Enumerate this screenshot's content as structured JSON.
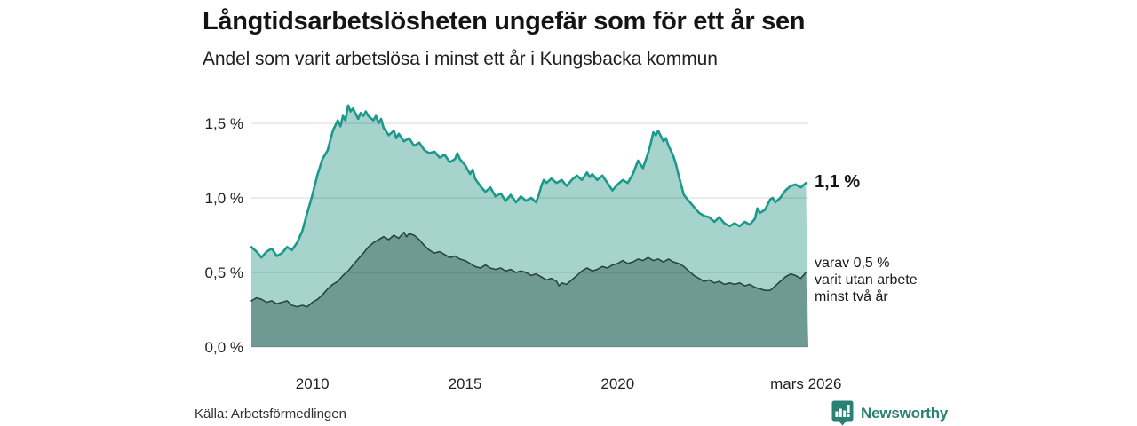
{
  "header": {
    "title": "Långtidsarbetslösheten ungefär som för ett år sen",
    "subtitle": "Andel som varit arbetslösa i minst ett år i Kungsbacka kommun"
  },
  "annotations": {
    "latest_value": "1,1 %",
    "secondary_lines": [
      "varav 0,5 %",
      "varit utan arbete",
      "minst två år"
    ]
  },
  "footer": {
    "source": "Källa: Arbetsförmedlingen",
    "brand": "Newsworthy"
  },
  "colors": {
    "series1_line": "#1b998b",
    "series1_fill": "#a6d4cd",
    "series2_line": "#28453f",
    "series2_fill": "#6f9a93",
    "gridline": "rgba(0,0,0,0.12)",
    "brand_teal": "#2a8073",
    "text": "#141414"
  },
  "chart_data": {
    "type": "area",
    "title": "Långtidsarbetslösheten ungefär som för ett år sen",
    "subtitle": "Andel som varit arbetslösa i minst ett år i Kungsbacka kommun",
    "grid": "horizontal",
    "legend": "none",
    "x_axis": {
      "min": 2008.0,
      "max": 2026.25,
      "ticks": [
        {
          "value": 2010,
          "label": "2010"
        },
        {
          "value": 2015,
          "label": "2015"
        },
        {
          "value": 2020,
          "label": "2020"
        },
        {
          "value": 2026.17,
          "label": "mars 2026"
        }
      ]
    },
    "y_axis": {
      "min": 0,
      "max": 1.65,
      "unit": "%",
      "ticks": [
        {
          "value": 1.5,
          "label": "1,5 %"
        },
        {
          "value": 1.0,
          "label": "1,0 %"
        },
        {
          "value": 0.5,
          "label": "0,5 %"
        },
        {
          "value": 0.0,
          "label": "0,0 %"
        }
      ]
    },
    "series": [
      {
        "name": "Andel arbetslösa minst ett år",
        "latest_label": "1,1 %",
        "fill": "#a6d4cd",
        "stroke": "#1b998b",
        "stroke_width": 2.6,
        "points": [
          [
            2008.0,
            0.67
          ],
          [
            2008.17,
            0.64
          ],
          [
            2008.33,
            0.6
          ],
          [
            2008.5,
            0.64
          ],
          [
            2008.67,
            0.66
          ],
          [
            2008.83,
            0.61
          ],
          [
            2009.0,
            0.63
          ],
          [
            2009.17,
            0.67
          ],
          [
            2009.33,
            0.65
          ],
          [
            2009.5,
            0.7
          ],
          [
            2009.67,
            0.78
          ],
          [
            2009.83,
            0.9
          ],
          [
            2010.0,
            1.02
          ],
          [
            2010.17,
            1.16
          ],
          [
            2010.33,
            1.26
          ],
          [
            2010.5,
            1.32
          ],
          [
            2010.67,
            1.45
          ],
          [
            2010.83,
            1.52
          ],
          [
            2010.92,
            1.48
          ],
          [
            2011.0,
            1.55
          ],
          [
            2011.08,
            1.52
          ],
          [
            2011.17,
            1.62
          ],
          [
            2011.25,
            1.58
          ],
          [
            2011.33,
            1.6
          ],
          [
            2011.5,
            1.53
          ],
          [
            2011.58,
            1.57
          ],
          [
            2011.67,
            1.55
          ],
          [
            2011.75,
            1.58
          ],
          [
            2011.83,
            1.55
          ],
          [
            2012.0,
            1.52
          ],
          [
            2012.08,
            1.55
          ],
          [
            2012.17,
            1.5
          ],
          [
            2012.25,
            1.53
          ],
          [
            2012.33,
            1.47
          ],
          [
            2012.5,
            1.42
          ],
          [
            2012.67,
            1.45
          ],
          [
            2012.75,
            1.4
          ],
          [
            2012.83,
            1.43
          ],
          [
            2013.0,
            1.38
          ],
          [
            2013.17,
            1.4
          ],
          [
            2013.33,
            1.35
          ],
          [
            2013.5,
            1.37
          ],
          [
            2013.67,
            1.32
          ],
          [
            2013.83,
            1.3
          ],
          [
            2014.0,
            1.31
          ],
          [
            2014.17,
            1.27
          ],
          [
            2014.33,
            1.29
          ],
          [
            2014.5,
            1.24
          ],
          [
            2014.67,
            1.26
          ],
          [
            2014.75,
            1.3
          ],
          [
            2014.83,
            1.26
          ],
          [
            2015.0,
            1.22
          ],
          [
            2015.17,
            1.16
          ],
          [
            2015.25,
            1.19
          ],
          [
            2015.33,
            1.13
          ],
          [
            2015.5,
            1.08
          ],
          [
            2015.67,
            1.04
          ],
          [
            2015.83,
            1.07
          ],
          [
            2016.0,
            1.01
          ],
          [
            2016.17,
            1.03
          ],
          [
            2016.33,
            0.98
          ],
          [
            2016.5,
            1.02
          ],
          [
            2016.67,
            0.97
          ],
          [
            2016.83,
            1.01
          ],
          [
            2017.0,
            0.98
          ],
          [
            2017.17,
            1.0
          ],
          [
            2017.33,
            0.97
          ],
          [
            2017.42,
            1.02
          ],
          [
            2017.5,
            1.08
          ],
          [
            2017.58,
            1.12
          ],
          [
            2017.67,
            1.1
          ],
          [
            2017.83,
            1.13
          ],
          [
            2018.0,
            1.1
          ],
          [
            2018.17,
            1.12
          ],
          [
            2018.33,
            1.08
          ],
          [
            2018.5,
            1.12
          ],
          [
            2018.67,
            1.15
          ],
          [
            2018.83,
            1.12
          ],
          [
            2019.0,
            1.17
          ],
          [
            2019.08,
            1.14
          ],
          [
            2019.17,
            1.16
          ],
          [
            2019.33,
            1.12
          ],
          [
            2019.5,
            1.15
          ],
          [
            2019.67,
            1.1
          ],
          [
            2019.83,
            1.05
          ],
          [
            2020.0,
            1.09
          ],
          [
            2020.17,
            1.12
          ],
          [
            2020.33,
            1.1
          ],
          [
            2020.5,
            1.16
          ],
          [
            2020.67,
            1.25
          ],
          [
            2020.83,
            1.2
          ],
          [
            2021.0,
            1.3
          ],
          [
            2021.08,
            1.36
          ],
          [
            2021.17,
            1.44
          ],
          [
            2021.25,
            1.42
          ],
          [
            2021.33,
            1.45
          ],
          [
            2021.5,
            1.38
          ],
          [
            2021.58,
            1.4
          ],
          [
            2021.67,
            1.35
          ],
          [
            2021.83,
            1.28
          ],
          [
            2021.92,
            1.22
          ],
          [
            2022.0,
            1.15
          ],
          [
            2022.17,
            1.02
          ],
          [
            2022.33,
            0.98
          ],
          [
            2022.5,
            0.94
          ],
          [
            2022.67,
            0.9
          ],
          [
            2022.83,
            0.88
          ],
          [
            2023.0,
            0.87
          ],
          [
            2023.17,
            0.84
          ],
          [
            2023.33,
            0.87
          ],
          [
            2023.5,
            0.83
          ],
          [
            2023.67,
            0.81
          ],
          [
            2023.83,
            0.83
          ],
          [
            2024.0,
            0.81
          ],
          [
            2024.17,
            0.84
          ],
          [
            2024.33,
            0.82
          ],
          [
            2024.5,
            0.86
          ],
          [
            2024.58,
            0.93
          ],
          [
            2024.67,
            0.9
          ],
          [
            2024.83,
            0.92
          ],
          [
            2025.0,
            0.99
          ],
          [
            2025.08,
            1.0
          ],
          [
            2025.17,
            0.97
          ],
          [
            2025.33,
            1.0
          ],
          [
            2025.5,
            1.05
          ],
          [
            2025.67,
            1.08
          ],
          [
            2025.83,
            1.09
          ],
          [
            2026.0,
            1.07
          ],
          [
            2026.17,
            1.1
          ]
        ]
      },
      {
        "name": "varav utan arbete minst två år",
        "latest_label": "0,5 %",
        "fill": "#6f9a93",
        "stroke": "#28453f",
        "stroke_width": 1.6,
        "points": [
          [
            2008.0,
            0.31
          ],
          [
            2008.17,
            0.33
          ],
          [
            2008.33,
            0.32
          ],
          [
            2008.5,
            0.3
          ],
          [
            2008.67,
            0.31
          ],
          [
            2008.83,
            0.29
          ],
          [
            2009.0,
            0.3
          ],
          [
            2009.17,
            0.31
          ],
          [
            2009.33,
            0.28
          ],
          [
            2009.5,
            0.27
          ],
          [
            2009.67,
            0.28
          ],
          [
            2009.83,
            0.27
          ],
          [
            2010.0,
            0.3
          ],
          [
            2010.17,
            0.32
          ],
          [
            2010.33,
            0.35
          ],
          [
            2010.5,
            0.39
          ],
          [
            2010.67,
            0.42
          ],
          [
            2010.83,
            0.44
          ],
          [
            2011.0,
            0.48
          ],
          [
            2011.17,
            0.51
          ],
          [
            2011.33,
            0.55
          ],
          [
            2011.5,
            0.59
          ],
          [
            2011.67,
            0.63
          ],
          [
            2011.83,
            0.67
          ],
          [
            2012.0,
            0.7
          ],
          [
            2012.17,
            0.72
          ],
          [
            2012.33,
            0.74
          ],
          [
            2012.5,
            0.72
          ],
          [
            2012.67,
            0.75
          ],
          [
            2012.83,
            0.73
          ],
          [
            2013.0,
            0.77
          ],
          [
            2013.08,
            0.74
          ],
          [
            2013.17,
            0.76
          ],
          [
            2013.33,
            0.75
          ],
          [
            2013.5,
            0.72
          ],
          [
            2013.67,
            0.68
          ],
          [
            2013.83,
            0.65
          ],
          [
            2014.0,
            0.63
          ],
          [
            2014.17,
            0.64
          ],
          [
            2014.33,
            0.62
          ],
          [
            2014.5,
            0.6
          ],
          [
            2014.67,
            0.61
          ],
          [
            2014.83,
            0.59
          ],
          [
            2015.0,
            0.58
          ],
          [
            2015.17,
            0.56
          ],
          [
            2015.33,
            0.54
          ],
          [
            2015.5,
            0.53
          ],
          [
            2015.67,
            0.55
          ],
          [
            2015.83,
            0.53
          ],
          [
            2016.0,
            0.52
          ],
          [
            2016.17,
            0.53
          ],
          [
            2016.33,
            0.51
          ],
          [
            2016.5,
            0.52
          ],
          [
            2016.67,
            0.5
          ],
          [
            2016.83,
            0.51
          ],
          [
            2017.0,
            0.5
          ],
          [
            2017.17,
            0.48
          ],
          [
            2017.33,
            0.49
          ],
          [
            2017.5,
            0.47
          ],
          [
            2017.67,
            0.45
          ],
          [
            2017.83,
            0.46
          ],
          [
            2018.0,
            0.44
          ],
          [
            2018.08,
            0.41
          ],
          [
            2018.17,
            0.43
          ],
          [
            2018.33,
            0.42
          ],
          [
            2018.5,
            0.45
          ],
          [
            2018.67,
            0.48
          ],
          [
            2018.83,
            0.51
          ],
          [
            2019.0,
            0.53
          ],
          [
            2019.17,
            0.51
          ],
          [
            2019.33,
            0.52
          ],
          [
            2019.5,
            0.54
          ],
          [
            2019.67,
            0.53
          ],
          [
            2019.83,
            0.55
          ],
          [
            2020.0,
            0.56
          ],
          [
            2020.17,
            0.58
          ],
          [
            2020.33,
            0.56
          ],
          [
            2020.5,
            0.57
          ],
          [
            2020.67,
            0.59
          ],
          [
            2020.83,
            0.58
          ],
          [
            2021.0,
            0.6
          ],
          [
            2021.17,
            0.58
          ],
          [
            2021.33,
            0.59
          ],
          [
            2021.5,
            0.57
          ],
          [
            2021.67,
            0.59
          ],
          [
            2021.83,
            0.57
          ],
          [
            2022.0,
            0.56
          ],
          [
            2022.17,
            0.54
          ],
          [
            2022.33,
            0.51
          ],
          [
            2022.5,
            0.48
          ],
          [
            2022.67,
            0.46
          ],
          [
            2022.83,
            0.44
          ],
          [
            2023.0,
            0.45
          ],
          [
            2023.17,
            0.43
          ],
          [
            2023.33,
            0.44
          ],
          [
            2023.5,
            0.42
          ],
          [
            2023.67,
            0.43
          ],
          [
            2023.83,
            0.42
          ],
          [
            2024.0,
            0.43
          ],
          [
            2024.17,
            0.41
          ],
          [
            2024.33,
            0.42
          ],
          [
            2024.5,
            0.4
          ],
          [
            2024.67,
            0.39
          ],
          [
            2024.83,
            0.38
          ],
          [
            2025.0,
            0.38
          ],
          [
            2025.17,
            0.41
          ],
          [
            2025.33,
            0.44
          ],
          [
            2025.5,
            0.47
          ],
          [
            2025.67,
            0.49
          ],
          [
            2025.83,
            0.48
          ],
          [
            2026.0,
            0.46
          ],
          [
            2026.17,
            0.5
          ]
        ]
      }
    ]
  }
}
